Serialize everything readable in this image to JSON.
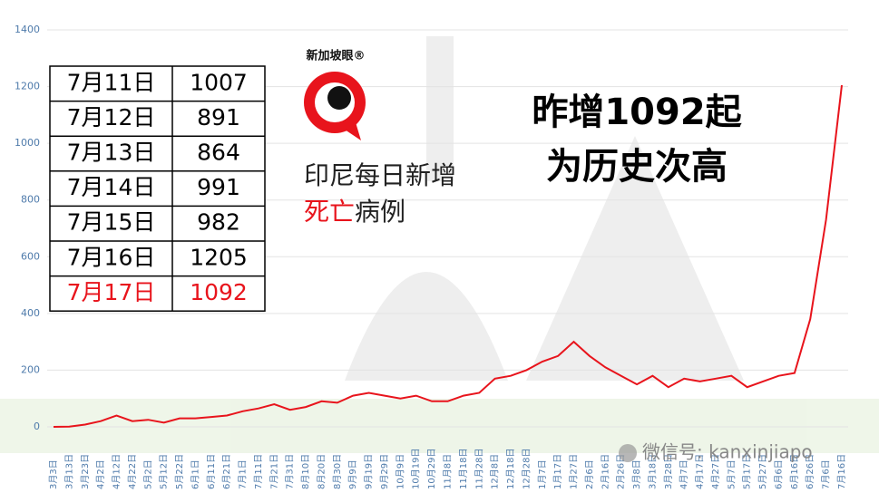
{
  "chart_data": {
    "type": "line",
    "categories": [
      "3月3日",
      "3月13日",
      "3月23日",
      "4月2日",
      "4月12日",
      "4月22日",
      "5月2日",
      "5月12日",
      "5月22日",
      "6月1日",
      "6月11日",
      "6月21日",
      "7月1日",
      "7月11日",
      "7月21日",
      "7月31日",
      "8月10日",
      "8月20日",
      "8月30日",
      "9月9日",
      "9月19日",
      "9月29日",
      "10月9日",
      "10月19日",
      "10月29日",
      "11月8日",
      "11月18日",
      "11月28日",
      "12月8日",
      "12月18日",
      "12月28日",
      "1月7日",
      "1月17日",
      "1月27日",
      "2月6日",
      "2月16日",
      "2月26日",
      "3月8日",
      "3月18日",
      "3月28日",
      "4月7日",
      "4月17日",
      "4月27日",
      "5月7日",
      "5月17日",
      "5月27日",
      "6月6日",
      "6月16日",
      "6月26日",
      "7月6日",
      "7月16日"
    ],
    "values": [
      0,
      1,
      8,
      20,
      40,
      20,
      25,
      15,
      30,
      30,
      35,
      40,
      55,
      65,
      80,
      60,
      70,
      90,
      85,
      110,
      120,
      110,
      100,
      110,
      90,
      90,
      110,
      120,
      170,
      180,
      200,
      230,
      250,
      300,
      250,
      210,
      180,
      150,
      180,
      140,
      170,
      160,
      170,
      180,
      140,
      160,
      180,
      190,
      380,
      730,
      1205
    ],
    "color": "#e8141c",
    "ylim": [
      0,
      1400
    ],
    "yticks": [
      0,
      200,
      400,
      600,
      800,
      1000,
      1200,
      1400
    ],
    "grid": true,
    "annotations": [
      "印尼每日新增",
      "死亡",
      "病例",
      "昨增1092起",
      "为历史次高"
    ]
  },
  "table": {
    "rows": [
      [
        "7月11日",
        1007
      ],
      [
        "7月12日",
        891
      ],
      [
        "7月13日",
        864
      ],
      [
        "7月14日",
        991
      ],
      [
        "7月15日",
        982
      ],
      [
        "7月16日",
        1205
      ],
      [
        "7月17日",
        1092
      ]
    ],
    "highlight_color": "#e8141c"
  },
  "logo": "新加坡眼®",
  "watermark": "微信号: kanxinjiapo"
}
